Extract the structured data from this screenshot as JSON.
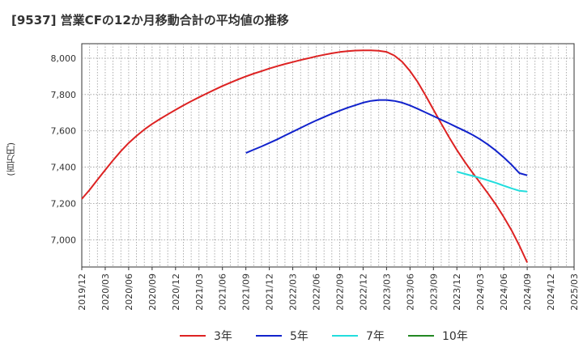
{
  "title": "[9537]  営業CFの12か月移動合計の平均値の推移",
  "y_unit": "(百万円)",
  "chart_data": {
    "type": "line",
    "title": "[9537]  営業CFの12か月移動合計の平均値の推移",
    "ylabel": "(百万円)",
    "xlabel": "",
    "ylim": [
      6850,
      8080
    ],
    "xlim": [
      "2019/12",
      "2025/03"
    ],
    "yticks": [
      7000,
      7200,
      7400,
      7600,
      7800,
      8000
    ],
    "ytick_labels": [
      "7,000",
      "7,200",
      "7,400",
      "7,600",
      "7,800",
      "8,000"
    ],
    "xtick_labels": [
      "2019/12",
      "2020/03",
      "2020/06",
      "2020/09",
      "2020/12",
      "2021/03",
      "2021/06",
      "2021/09",
      "2021/12",
      "2022/03",
      "2022/06",
      "2022/09",
      "2022/12",
      "2023/03",
      "2023/06",
      "2023/09",
      "2023/12",
      "2024/03",
      "2024/06",
      "2024/09",
      "2024/12",
      "2025/03"
    ],
    "grid": true,
    "legend_position": "bottom",
    "series": [
      {
        "name": "3年",
        "color": "#dd2222",
        "points": [
          [
            "2019/12",
            7225
          ],
          [
            "2020/01",
            7275
          ],
          [
            "2020/02",
            7330
          ],
          [
            "2020/03",
            7385
          ],
          [
            "2020/04",
            7438
          ],
          [
            "2020/05",
            7488
          ],
          [
            "2020/06",
            7533
          ],
          [
            "2020/07",
            7572
          ],
          [
            "2020/08",
            7607
          ],
          [
            "2020/09",
            7638
          ],
          [
            "2020/10",
            7665
          ],
          [
            "2020/11",
            7691
          ],
          [
            "2020/12",
            7716
          ],
          [
            "2020/01x",
            null
          ],
          [
            "2021/01",
            7740
          ],
          [
            "2021/02",
            7763
          ],
          [
            "2021/03",
            7785
          ],
          [
            "2021/04",
            7806
          ],
          [
            "2021/05",
            7827
          ],
          [
            "2021/06",
            7847
          ],
          [
            "2021/07",
            7865
          ],
          [
            "2021/08",
            7883
          ],
          [
            "2021/09",
            7900
          ],
          [
            "2021/10",
            7915
          ],
          [
            "2021/11",
            7929
          ],
          [
            "2021/12",
            7943
          ],
          [
            "2022/01",
            7956
          ],
          [
            "2022/02",
            7968
          ],
          [
            "2022/03",
            7979
          ],
          [
            "2022/04",
            7990
          ],
          [
            "2022/05",
            8000
          ],
          [
            "2022/06",
            8010
          ],
          [
            "2022/07",
            8019
          ],
          [
            "2022/08",
            8027
          ],
          [
            "2022/09",
            8034
          ],
          [
            "2022/10",
            8039
          ],
          [
            "2022/11",
            8042
          ],
          [
            "2022/12",
            8043
          ],
          [
            "2023/01",
            8043
          ],
          [
            "2023/02",
            8041
          ],
          [
            "2023/03",
            8035
          ],
          [
            "2023/04",
            8015
          ],
          [
            "2023/05",
            7980
          ],
          [
            "2023/06",
            7930
          ],
          [
            "2023/07",
            7868
          ],
          [
            "2023/08",
            7795
          ],
          [
            "2023/09",
            7717
          ],
          [
            "2023/10",
            7640
          ],
          [
            "2023/11",
            7565
          ],
          [
            "2023/12",
            7495
          ],
          [
            "2024/01",
            7430
          ],
          [
            "2024/02",
            7370
          ],
          [
            "2024/03",
            7312
          ],
          [
            "2024/04",
            7254
          ],
          [
            "2024/05",
            7193
          ],
          [
            "2024/06",
            7126
          ],
          [
            "2024/07",
            7052
          ],
          [
            "2024/08",
            6968
          ],
          [
            "2024/09",
            6875
          ]
        ]
      },
      {
        "name": "5年",
        "color": "#1122cc",
        "points": [
          [
            "2021/09",
            7478
          ],
          [
            "2021/10",
            7496
          ],
          [
            "2021/11",
            7514
          ],
          [
            "2021/12",
            7533
          ],
          [
            "2022/01",
            7553
          ],
          [
            "2022/02",
            7574
          ],
          [
            "2022/03",
            7595
          ],
          [
            "2022/04",
            7616
          ],
          [
            "2022/05",
            7637
          ],
          [
            "2022/06",
            7657
          ],
          [
            "2022/07",
            7676
          ],
          [
            "2022/08",
            7694
          ],
          [
            "2022/09",
            7711
          ],
          [
            "2022/10",
            7727
          ],
          [
            "2022/11",
            7741
          ],
          [
            "2022/12",
            7755
          ],
          [
            "2023/01",
            7765
          ],
          [
            "2023/02",
            7770
          ],
          [
            "2023/03",
            7770
          ],
          [
            "2023/04",
            7765
          ],
          [
            "2023/05",
            7755
          ],
          [
            "2023/06",
            7740
          ],
          [
            "2023/07",
            7721
          ],
          [
            "2023/08",
            7701
          ],
          [
            "2023/09",
            7681
          ],
          [
            "2023/10",
            7661
          ],
          [
            "2023/11",
            7641
          ],
          [
            "2023/12",
            7620
          ],
          [
            "2024/01",
            7600
          ],
          [
            "2024/02",
            7578
          ],
          [
            "2024/03",
            7553
          ],
          [
            "2024/04",
            7524
          ],
          [
            "2024/05",
            7491
          ],
          [
            "2024/06",
            7454
          ],
          [
            "2024/07",
            7413
          ],
          [
            "2024/08",
            7367
          ],
          [
            "2024/09",
            7355
          ]
        ]
      },
      {
        "name": "7年",
        "color": "#22dddd",
        "points": [
          [
            "2023/12",
            7375
          ],
          [
            "2024/01",
            7363
          ],
          [
            "2024/02",
            7352
          ],
          [
            "2024/03",
            7340
          ],
          [
            "2024/04",
            7327
          ],
          [
            "2024/05",
            7313
          ],
          [
            "2024/06",
            7298
          ],
          [
            "2024/07",
            7283
          ],
          [
            "2024/08",
            7270
          ],
          [
            "2024/09",
            7266
          ]
        ]
      },
      {
        "name": "10年",
        "color": "#228822",
        "points": []
      }
    ]
  }
}
